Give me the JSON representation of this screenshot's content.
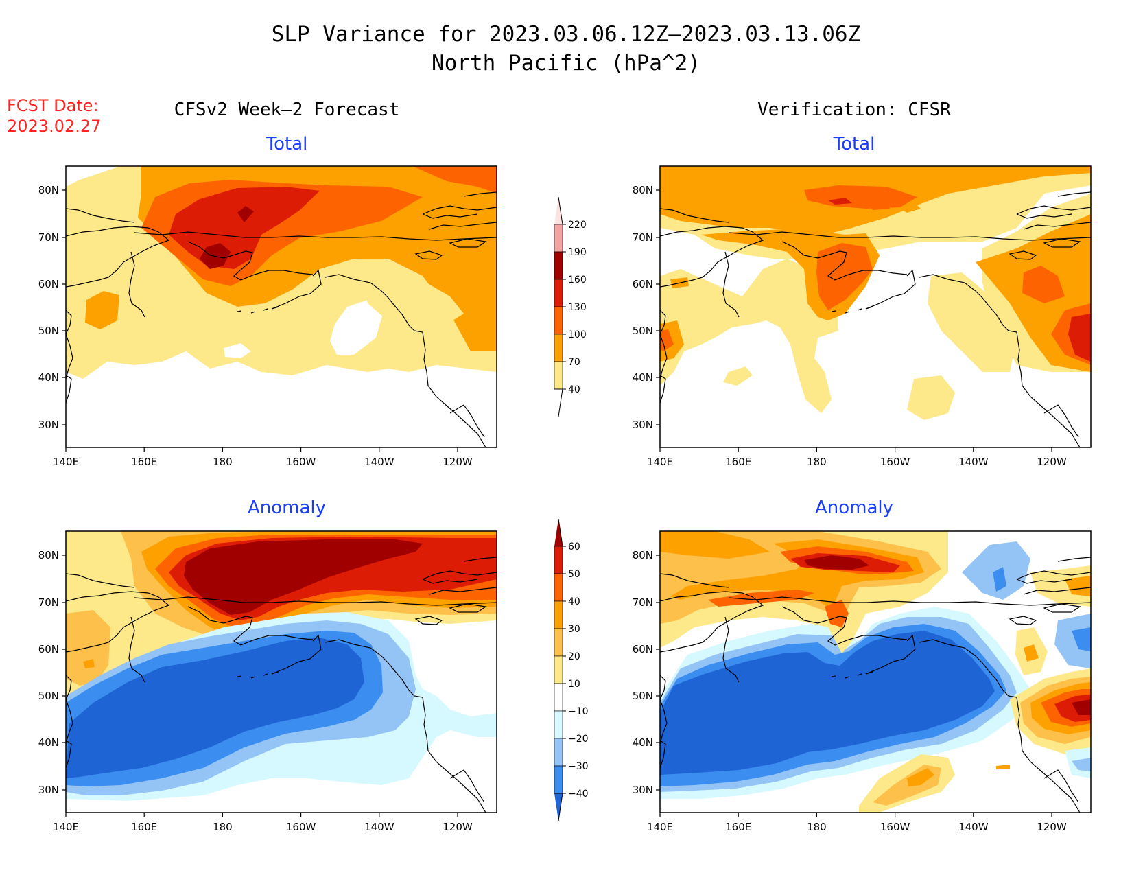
{
  "title": {
    "line1": "SLP Variance for 2023.03.06.12Z–2023.03.13.06Z",
    "line2": "North Pacific (hPa^2)"
  },
  "fcst": {
    "label": "FCST Date:",
    "date": "2023.02.27"
  },
  "columns": {
    "left": "CFSv2 Week–2 Forecast",
    "right": "Verification: CFSR"
  },
  "rows": {
    "top": "Total",
    "bottom": "Anomaly"
  },
  "axes": {
    "lon_ticks": [
      "140E",
      "160E",
      "180",
      "160W",
      "140W",
      "120W"
    ],
    "lat_ticks": [
      "80N",
      "70N",
      "60N",
      "50N",
      "40N",
      "30N"
    ]
  },
  "colorbars": {
    "total": {
      "levels": [
        "220",
        "190",
        "160",
        "130",
        "100",
        "70",
        "40"
      ],
      "colors": [
        "#fde2e2",
        "#f4a3a3",
        "#a00000",
        "#dd1c06",
        "#fd6400",
        "#fda100",
        "#fde88a"
      ]
    },
    "anomaly": {
      "levels": [
        "60",
        "50",
        "40",
        "30",
        "20",
        "10",
        "−10",
        "−20",
        "−30",
        "−40"
      ],
      "colors": [
        "#a00000",
        "#dd1c06",
        "#fd6400",
        "#fda100",
        "#fdc04a",
        "#fde88a",
        "#ffffff",
        "#d6f8ff",
        "#94c4f6",
        "#3c8df0",
        "#1f64d4"
      ]
    }
  }
}
